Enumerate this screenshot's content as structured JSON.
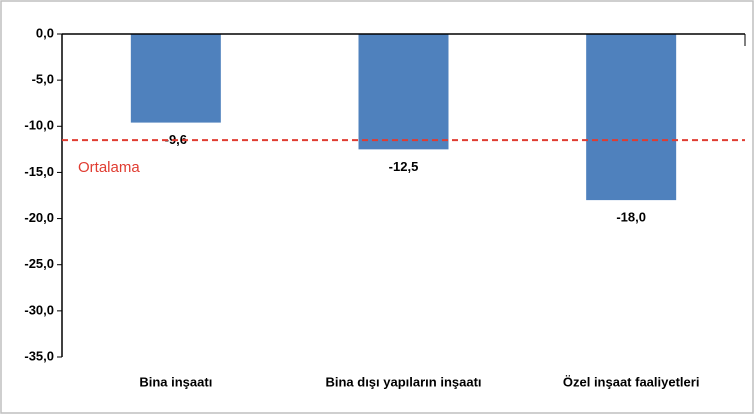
{
  "chart_data": {
    "type": "bar",
    "categories": [
      "Bina inşaatı",
      "Bina dışı yapıların inşaatı",
      "Özel inşaat faaliyetleri"
    ],
    "values": [
      -9.6,
      -12.5,
      -18.0
    ],
    "value_labels": [
      "-9,6",
      "-12,5",
      "-18,0"
    ],
    "color": "#4f81bd",
    "ylim": [
      -35,
      0
    ],
    "yticks": [
      {
        "value": 0,
        "label": "0,0"
      },
      {
        "value": -5,
        "label": "-5,0"
      },
      {
        "value": -10,
        "label": "-10,0"
      },
      {
        "value": -15,
        "label": "-15,0"
      },
      {
        "value": -20,
        "label": "-20,0"
      },
      {
        "value": -25,
        "label": "-25,0"
      },
      {
        "value": -30,
        "label": "-30,0"
      },
      {
        "value": -35,
        "label": "-35,0"
      }
    ],
    "grid": false,
    "reference_line": {
      "label": "Ortalama",
      "value": -11.5,
      "color": "#e03c31"
    }
  }
}
